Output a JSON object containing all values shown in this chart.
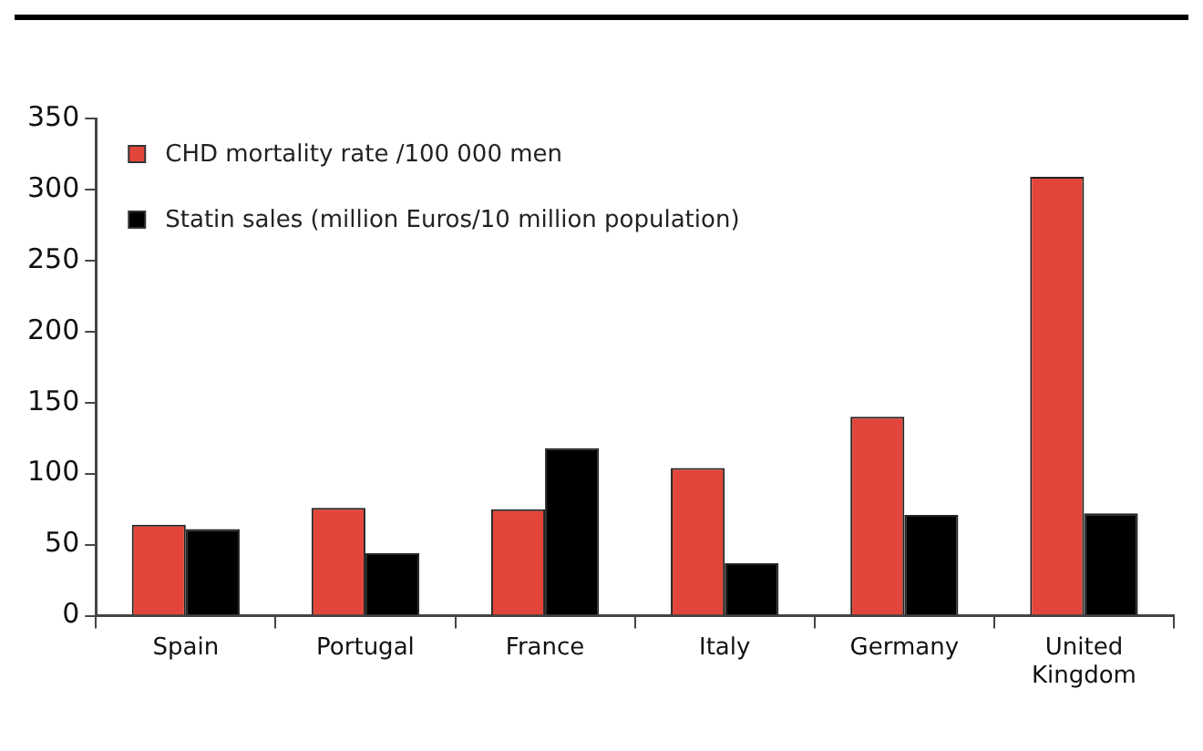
{
  "chart_data": {
    "type": "bar",
    "categories": [
      "Spain",
      "Portugal",
      "France",
      "Italy",
      "Germany",
      "United Kingdom"
    ],
    "series": [
      {
        "name": "CHD mortality rate /100 000 men",
        "color": "#e2453a",
        "values": [
          64,
          76,
          75,
          104,
          140,
          309
        ]
      },
      {
        "name": "Statin sales (million Euros/10 million population)",
        "color": "#000000",
        "values": [
          61,
          44,
          118,
          37,
          71,
          72
        ]
      }
    ],
    "ylim": [
      0,
      350
    ],
    "yticks": [
      0,
      50,
      100,
      150,
      200,
      250,
      300,
      350
    ],
    "grid": false,
    "legend": "top left"
  }
}
